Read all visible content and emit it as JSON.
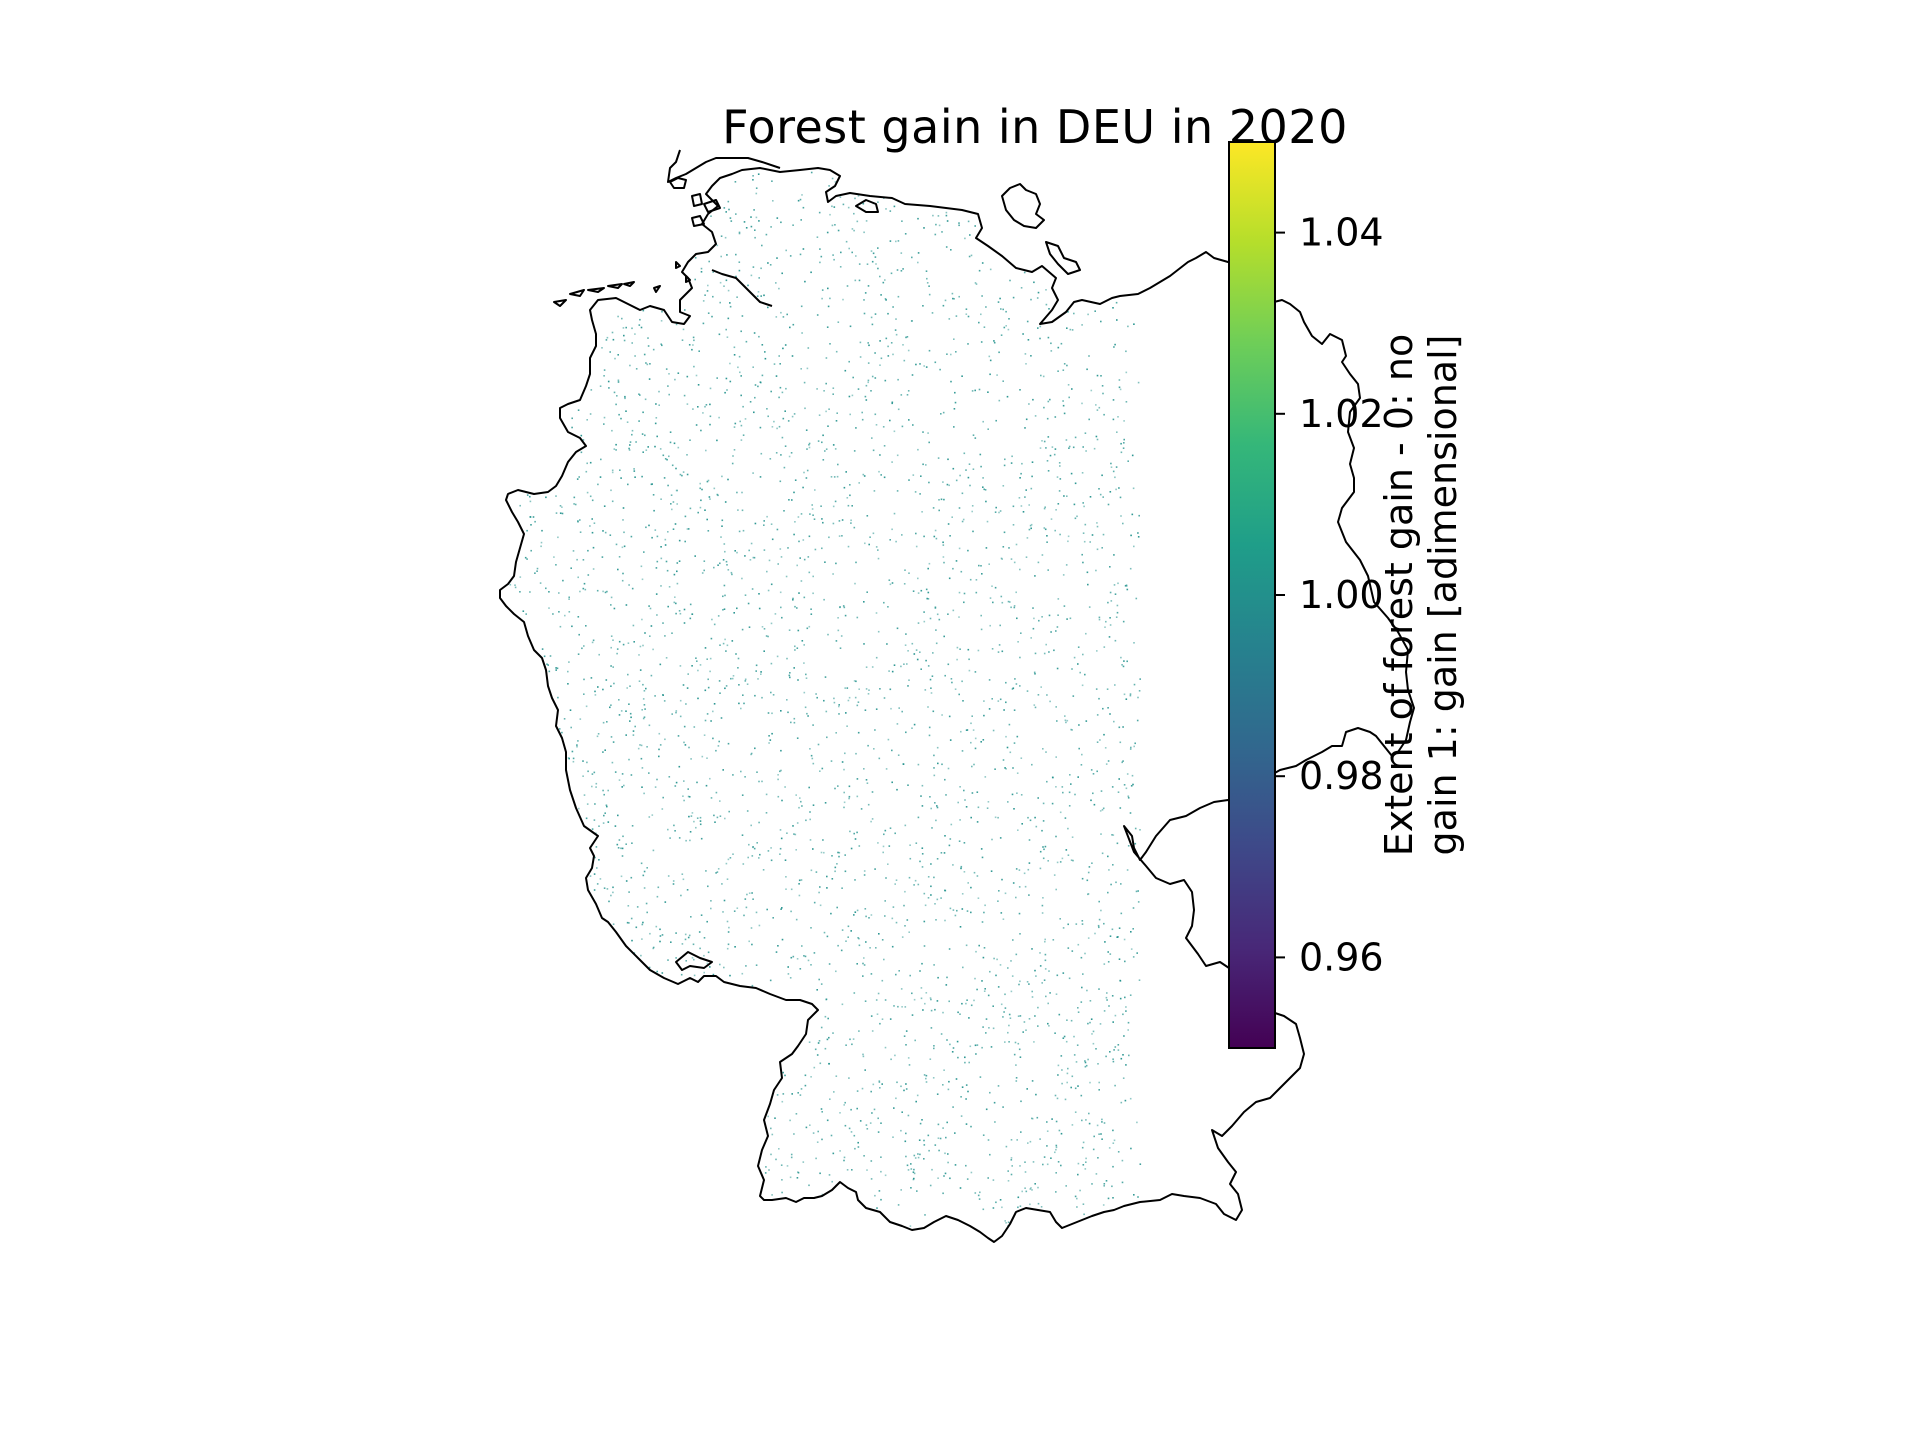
{
  "title": "Forest gain in DEU in 2020",
  "map": {
    "region": "DEU",
    "boundary_color": "#000000",
    "pixel_color": "#21918c",
    "background": "#ffffff"
  },
  "colorbar": {
    "label_line1": "Extent of forest gain - 0: no",
    "label_line2": "gain 1: gain [adimensional]",
    "colormap": "viridis",
    "range": [
      0.95,
      1.05
    ],
    "stops": [
      "#440154",
      "#482878",
      "#3e4989",
      "#31688e",
      "#26828e",
      "#1f9e89",
      "#35b779",
      "#6ece58",
      "#b5de2b",
      "#fde725"
    ],
    "ticks": [
      {
        "value": 0.96,
        "label": "0.96"
      },
      {
        "value": 0.98,
        "label": "0.98"
      },
      {
        "value": 1.0,
        "label": "1.00"
      },
      {
        "value": 1.02,
        "label": "1.02"
      },
      {
        "value": 1.04,
        "label": "1.04"
      }
    ]
  }
}
